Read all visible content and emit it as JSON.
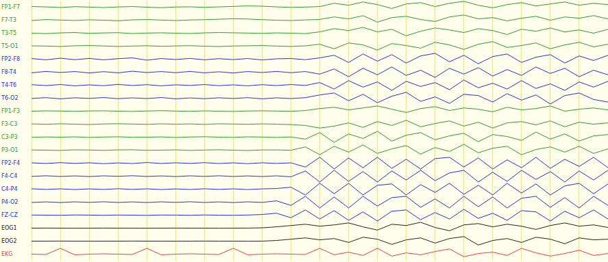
{
  "chart_data": {
    "type": "line",
    "x": [
      0,
      0.5,
      1,
      1.5,
      2,
      2.5,
      3,
      3.5,
      4,
      4.5,
      5,
      5.5,
      6,
      6.5,
      7,
      7.5,
      8,
      8.5,
      9,
      9.5,
      10,
      10.5,
      11,
      11.5,
      12,
      12.5,
      13,
      13.5,
      14,
      14.5,
      15,
      15.5,
      16,
      16.5,
      17,
      17.5,
      18,
      18.5,
      19,
      19.5,
      20
    ],
    "xlim": [
      0,
      20
    ],
    "xticks": [
      0,
      1,
      2,
      3,
      4,
      5,
      6,
      7,
      8,
      9,
      10,
      11,
      12,
      13,
      14,
      15,
      16,
      17,
      18,
      19,
      20
    ],
    "ylim": [
      -1,
      1
    ],
    "grid": true,
    "tick_labels": false,
    "series": [
      {
        "name": "FP1-F7",
        "color": "#2e9e2e",
        "values": [
          0.1,
          0.05,
          -0.05,
          0.08,
          0.02,
          -0.06,
          0.04,
          0.1,
          0.0,
          -0.08,
          0.03,
          0.06,
          -0.02,
          0.05,
          0.12,
          0.2,
          0.15,
          0.05,
          -0.03,
          0.02,
          0.1,
          0.6,
          0.3,
          0.8,
          0.4,
          -0.2,
          0.5,
          0.7,
          0.1,
          0.6,
          0.9,
          0.3,
          -0.1,
          0.4,
          0.7,
          0.2,
          0.5,
          0.8,
          0.3,
          0.6,
          0.4
        ]
      },
      {
        "name": "F7-T3",
        "color": "#2e9e2e",
        "values": [
          -0.05,
          0.1,
          0.02,
          -0.04,
          0.06,
          0.0,
          -0.08,
          0.05,
          0.1,
          0.02,
          -0.05,
          0.03,
          0.08,
          0.15,
          0.22,
          0.18,
          0.08,
          0.0,
          -0.05,
          0.04,
          0.12,
          0.5,
          0.2,
          0.7,
          -0.3,
          0.4,
          0.6,
          0.1,
          -0.2,
          0.5,
          0.8,
          0.2,
          0.4,
          -0.1,
          0.3,
          0.6,
          0.0,
          0.5,
          0.3,
          0.7,
          0.2
        ]
      },
      {
        "name": "T3-T5",
        "color": "#2e9e2e",
        "values": [
          0.0,
          -0.06,
          0.05,
          0.1,
          -0.02,
          0.04,
          0.08,
          -0.05,
          0.02,
          0.06,
          0.0,
          -0.04,
          0.05,
          0.1,
          0.06,
          0.02,
          -0.03,
          0.05,
          0.0,
          -0.06,
          0.2,
          0.7,
          0.4,
          0.9,
          0.2,
          0.6,
          -0.4,
          0.3,
          0.8,
          0.5,
          0.1,
          0.7,
          0.4,
          -0.2,
          0.6,
          0.3,
          0.8,
          0.2,
          0.5,
          0.0,
          0.6
        ]
      },
      {
        "name": "T5-O1",
        "color": "#2e9e2e",
        "values": [
          0.05,
          0.02,
          -0.05,
          0.06,
          0.1,
          0.03,
          -0.04,
          0.02,
          0.07,
          -0.02,
          0.04,
          0.08,
          0.0,
          -0.05,
          0.03,
          0.06,
          0.1,
          0.02,
          -0.04,
          0.05,
          0.3,
          -0.4,
          0.5,
          0.2,
          -0.6,
          0.4,
          0.1,
          -0.3,
          0.6,
          0.2,
          -0.5,
          0.3,
          0.7,
          -0.2,
          0.1,
          0.5,
          -0.4,
          0.2,
          0.6,
          -0.1,
          0.3
        ]
      },
      {
        "name": "FP2-F8",
        "color": "#2433d8",
        "values": [
          0.1,
          -0.1,
          0.15,
          -0.08,
          0.12,
          -0.1,
          0.08,
          0.2,
          -0.15,
          0.1,
          -0.05,
          0.12,
          -0.1,
          0.08,
          -0.06,
          0.1,
          -0.12,
          0.06,
          0.1,
          -0.08,
          0.2,
          0.6,
          -0.5,
          0.8,
          -0.3,
          0.7,
          -0.6,
          0.5,
          0.9,
          -0.4,
          0.6,
          -0.7,
          0.4,
          0.8,
          -0.5,
          0.3,
          0.7,
          -0.6,
          0.5,
          -0.2,
          0.6
        ]
      },
      {
        "name": "F8-T4",
        "color": "#2433d8",
        "values": [
          -0.1,
          0.12,
          -0.05,
          0.1,
          -0.12,
          0.08,
          -0.1,
          0.15,
          -0.06,
          0.1,
          -0.08,
          0.12,
          -0.1,
          0.06,
          -0.12,
          0.1,
          -0.05,
          0.12,
          -0.08,
          0.1,
          -0.3,
          0.5,
          -0.7,
          0.6,
          -0.4,
          0.8,
          -0.5,
          0.3,
          -0.8,
          0.6,
          -0.3,
          0.7,
          -0.6,
          0.4,
          -0.5,
          0.8,
          -0.2,
          0.6,
          -0.7,
          0.3,
          -0.4
        ]
      },
      {
        "name": "T4-T6",
        "color": "#2433d8",
        "values": [
          0.08,
          -0.06,
          0.1,
          -0.1,
          0.05,
          -0.08,
          0.12,
          -0.05,
          0.08,
          -0.1,
          0.06,
          -0.04,
          0.1,
          -0.08,
          0.05,
          -0.1,
          0.08,
          -0.06,
          0.1,
          -0.04,
          0.4,
          -0.6,
          0.7,
          -0.3,
          0.5,
          -0.8,
          0.6,
          -0.2,
          0.4,
          -0.7,
          0.8,
          -0.4,
          0.3,
          -0.6,
          0.7,
          -0.5,
          0.2,
          -0.8,
          0.5,
          -0.3,
          0.6
        ]
      },
      {
        "name": "T6-O2",
        "color": "#2433d8",
        "values": [
          -0.05,
          0.08,
          -0.1,
          0.06,
          -0.04,
          0.1,
          -0.08,
          0.05,
          -0.06,
          0.1,
          -0.1,
          0.04,
          -0.08,
          0.06,
          -0.05,
          0.08,
          -0.1,
          0.05,
          -0.06,
          0.08,
          0.5,
          0.8,
          -0.4,
          0.6,
          -0.7,
          0.3,
          0.9,
          -0.5,
          0.2,
          -0.8,
          0.6,
          0.4,
          -0.6,
          0.7,
          -0.3,
          0.5,
          -0.9,
          0.4,
          0.8,
          -0.2,
          -0.6
        ]
      },
      {
        "name": "FP1-F3",
        "color": "#2e9e2e",
        "values": [
          0.0,
          0.05,
          0.02,
          -0.03,
          0.04,
          0.06,
          0.0,
          -0.04,
          0.03,
          0.08,
          0.02,
          -0.02,
          0.05,
          0.0,
          -0.05,
          0.03,
          0.06,
          0.02,
          -0.02,
          0.1,
          0.4,
          0.6,
          0.2,
          0.5,
          0.8,
          0.3,
          -0.2,
          0.4,
          0.7,
          0.1,
          0.5,
          0.3,
          -0.1,
          0.6,
          0.2,
          0.4,
          0.8,
          0.0,
          0.3,
          0.5,
          0.2
        ]
      },
      {
        "name": "F3-C3",
        "color": "#2e9e2e",
        "values": [
          0.04,
          -0.02,
          0.06,
          0.0,
          -0.05,
          0.03,
          0.07,
          0.02,
          -0.03,
          0.05,
          0.0,
          0.04,
          -0.04,
          0.06,
          0.02,
          -0.02,
          0.05,
          0.0,
          -0.06,
          -0.2,
          -0.6,
          -0.3,
          0.2,
          -0.5,
          0.4,
          -0.2,
          0.6,
          -0.4,
          0.1,
          0.5,
          -0.3,
          0.3,
          -0.6,
          0.2,
          0.4,
          -0.1,
          0.5,
          -0.4,
          0.3,
          0.0,
          0.2
        ]
      },
      {
        "name": "C3-P3",
        "color": "#2e9e2e",
        "values": [
          -0.02,
          0.03,
          0.0,
          0.05,
          -0.04,
          0.02,
          0.06,
          -0.02,
          0.0,
          0.04,
          -0.05,
          0.03,
          0.07,
          0.0,
          -0.03,
          0.05,
          0.02,
          -0.04,
          0.03,
          -0.3,
          0.7,
          -0.8,
          0.5,
          -0.2,
          0.9,
          -0.6,
          0.3,
          0.7,
          -0.4,
          0.2,
          0.6,
          -0.7,
          0.4,
          0.1,
          -0.5,
          0.8,
          -0.3,
          0.5,
          -0.6,
          0.2,
          0.4
        ]
      },
      {
        "name": "P3-O1",
        "color": "#2e9e2e",
        "values": [
          0.03,
          0.0,
          -0.04,
          0.05,
          0.02,
          -0.03,
          0.04,
          0.06,
          -0.02,
          0.0,
          0.05,
          -0.04,
          0.02,
          0.06,
          0.0,
          -0.05,
          0.03,
          0.04,
          -0.02,
          0.5,
          -0.7,
          0.6,
          -0.3,
          0.8,
          -0.5,
          0.2,
          0.7,
          -0.6,
          0.4,
          -0.2,
          0.9,
          -0.4,
          0.3,
          0.6,
          -0.7,
          0.1,
          0.5,
          -0.3,
          0.6,
          -0.5,
          0.2
        ]
      },
      {
        "name": "FP2-F4",
        "color": "#2433d8",
        "values": [
          0.05,
          -0.05,
          0.08,
          -0.04,
          0.06,
          -0.08,
          0.04,
          -0.06,
          0.1,
          -0.05,
          0.06,
          -0.04,
          0.08,
          -0.06,
          0.05,
          -0.08,
          0.06,
          -0.04,
          0.05,
          -0.6,
          0.9,
          -0.9,
          0.8,
          -0.7,
          0.9,
          -0.8,
          0.6,
          -0.9,
          0.7,
          0.9,
          -0.6,
          0.8,
          -0.9,
          0.5,
          -0.7,
          0.9,
          -0.8,
          0.6,
          -0.5,
          0.9,
          -0.7
        ]
      },
      {
        "name": "F4-C4",
        "color": "#2433d8",
        "values": [
          -0.04,
          0.06,
          -0.05,
          0.04,
          -0.06,
          0.05,
          -0.03,
          0.07,
          -0.05,
          0.04,
          -0.06,
          0.05,
          -0.04,
          0.06,
          -0.05,
          0.04,
          -0.06,
          0.05,
          -0.1,
          0.8,
          -0.9,
          0.9,
          -0.8,
          0.7,
          -0.9,
          0.8,
          -0.6,
          0.9,
          -0.7,
          0.5,
          0.9,
          -0.9,
          0.6,
          -0.8,
          0.9,
          -0.5,
          0.7,
          -0.9,
          0.8,
          -0.6,
          0.9
        ]
      },
      {
        "name": "C4-P4",
        "color": "#2433d8",
        "values": [
          0.06,
          -0.04,
          0.05,
          -0.06,
          0.04,
          -0.05,
          0.07,
          -0.04,
          0.05,
          -0.06,
          0.04,
          -0.05,
          0.06,
          -0.04,
          0.05,
          -0.06,
          0.04,
          0.1,
          0.3,
          -0.9,
          0.9,
          -0.7,
          0.9,
          -0.9,
          0.6,
          0.8,
          -0.9,
          0.7,
          -0.5,
          0.9,
          -0.8,
          0.6,
          -0.9,
          0.9,
          -0.6,
          0.8,
          -0.9,
          0.5,
          0.9,
          -0.7,
          0.8
        ]
      },
      {
        "name": "P4-O2",
        "color": "#2433d8",
        "values": [
          -0.05,
          0.04,
          -0.06,
          0.05,
          -0.04,
          0.06,
          -0.05,
          0.04,
          -0.06,
          0.05,
          -0.04,
          0.06,
          -0.05,
          0.04,
          -0.06,
          0.05,
          -0.04,
          0.2,
          -0.5,
          0.9,
          -0.9,
          0.8,
          -0.9,
          0.9,
          -0.6,
          0.7,
          0.9,
          -0.8,
          0.5,
          -0.9,
          0.9,
          -0.7,
          0.8,
          -0.9,
          0.6,
          0.9,
          -0.8,
          0.7,
          -0.9,
          0.9,
          -0.5
        ]
      },
      {
        "name": "FZ-CZ",
        "color": "#2433d8",
        "values": [
          0.02,
          0.0,
          -0.02,
          0.03,
          0.01,
          -0.02,
          0.02,
          0.0,
          -0.03,
          0.02,
          0.01,
          -0.02,
          0.03,
          0.0,
          -0.02,
          0.02,
          0.1,
          0.3,
          -0.4,
          0.8,
          -0.6,
          0.7,
          -0.8,
          0.5,
          -0.9,
          0.6,
          0.8,
          -0.7,
          0.4,
          -0.6,
          0.9,
          -0.5,
          0.3,
          -0.8,
          0.7,
          0.5,
          -0.9,
          0.6,
          -0.4,
          0.8,
          -0.6
        ]
      },
      {
        "name": "EOG1",
        "color": "#222222",
        "values": [
          0.0,
          0.01,
          0.0,
          -0.01,
          0.0,
          0.01,
          0.0,
          0.0,
          -0.01,
          0.0,
          0.01,
          0.0,
          0.0,
          -0.01,
          0.0,
          0.01,
          0.05,
          0.2,
          0.4,
          0.6,
          0.3,
          0.5,
          0.8,
          0.2,
          -0.3,
          0.6,
          0.4,
          0.9,
          0.1,
          -0.4,
          0.5,
          0.7,
          0.2,
          0.6,
          0.3,
          -0.2,
          0.4,
          0.8,
          0.3,
          0.5,
          0.1
        ]
      },
      {
        "name": "EOG2",
        "color": "#222222",
        "values": [
          0.0,
          0.0,
          0.01,
          0.0,
          -0.01,
          0.0,
          0.0,
          0.01,
          0.0,
          0.0,
          -0.01,
          0.0,
          0.01,
          0.0,
          0.0,
          -0.01,
          0.0,
          0.1,
          0.3,
          0.5,
          0.2,
          0.4,
          -0.2,
          0.6,
          0.3,
          -0.5,
          0.2,
          0.5,
          -0.3,
          0.4,
          0.7,
          -0.6,
          0.1,
          0.4,
          -0.2,
          0.6,
          0.3,
          -0.4,
          0.5,
          0.2,
          0.3
        ]
      },
      {
        "name": "EKG",
        "color": "#e8404a",
        "values": [
          0,
          -0.05,
          0.9,
          -0.1,
          0.0,
          0.05,
          0.0,
          -0.05,
          0.9,
          -0.1,
          0.0,
          0.05,
          0.0,
          -0.05,
          0.9,
          -0.1,
          0.0,
          0.05,
          0.0,
          -0.05,
          0.9,
          -0.1,
          0.3,
          -0.2,
          0.9,
          -0.3,
          0.2,
          -0.1,
          0.4,
          0.8,
          -0.4,
          0.1,
          0.3,
          -0.2,
          0.9,
          0.2,
          -0.3,
          0.1,
          0.6,
          -0.2,
          0.1
        ]
      }
    ]
  }
}
